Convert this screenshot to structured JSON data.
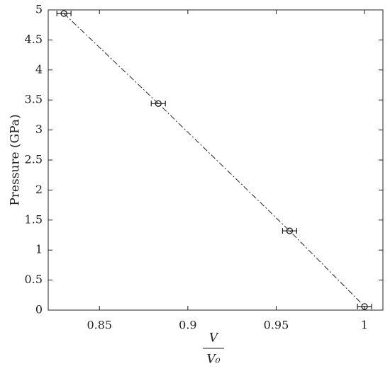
{
  "chart_data": {
    "type": "scatter",
    "ylabel": "Pressure (GPa)",
    "xlabel": {
      "numerator": "V",
      "denominator": "V₀"
    },
    "x": [
      0.8299,
      0.8833,
      0.9576,
      1.0
    ],
    "series": [
      {
        "values": [
          4.94,
          3.44,
          1.32,
          0.06
        ],
        "x_error": [
          0.004,
          0.004,
          0.004,
          0.004
        ],
        "color": "#222222"
      }
    ],
    "xlim": [
      0.821,
      1.0104
    ],
    "ylim": [
      0,
      5
    ],
    "xticks": [
      0.85,
      0.9,
      0.95,
      1
    ],
    "yticks": [
      0,
      0.5,
      1,
      1.5,
      2,
      2.5,
      3,
      3.5,
      4,
      4.5,
      5
    ],
    "line_style": "dash-dot"
  }
}
